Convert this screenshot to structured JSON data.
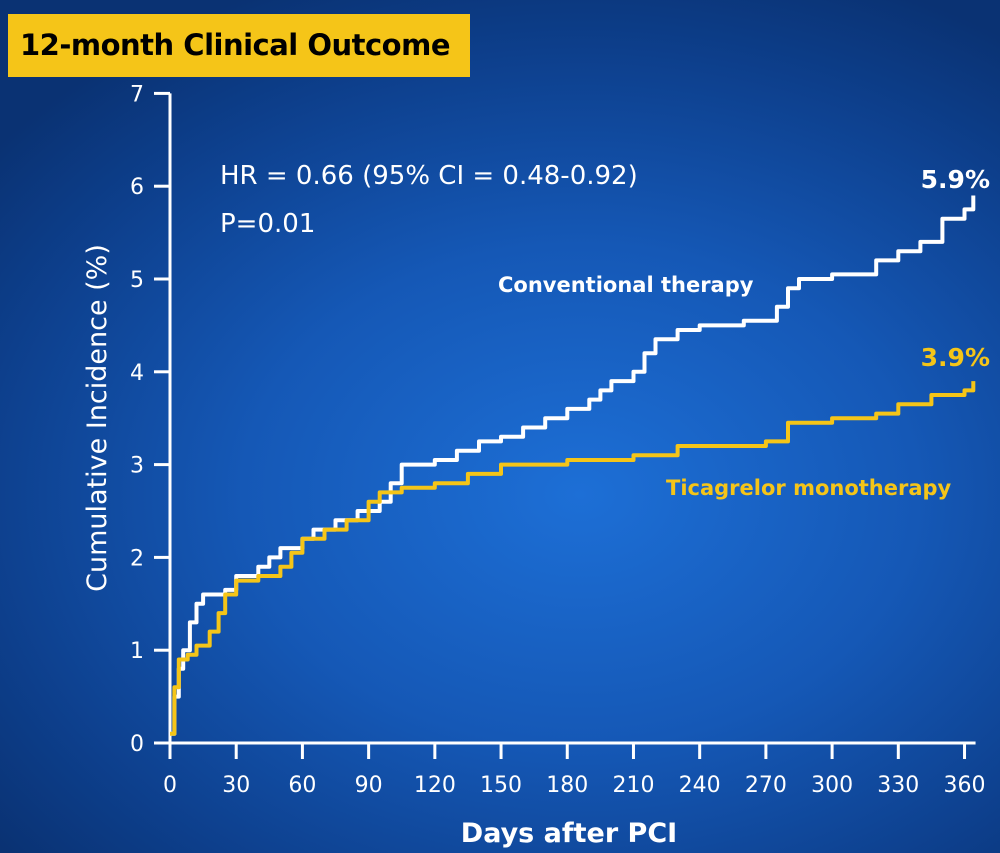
{
  "title": "12-month Clinical Outcome",
  "colors": {
    "background": "#1558b6",
    "title_box": "#f5c518",
    "axis": "#ffffff",
    "conventional": "#ffffff",
    "ticagrelor": "#f5c518"
  },
  "annotations": {
    "hr": "HR = 0.66 (95% CI = 0.48-0.92)",
    "p_value": "P=0.01",
    "conventional_end": "5.9%",
    "ticagrelor_end": "3.9%"
  },
  "chart_data": {
    "type": "line",
    "title": "12-month Clinical Outcome",
    "xlabel": "Days after PCI",
    "ylabel": "Cumulative Incidence (%)",
    "xlim": [
      0,
      365
    ],
    "ylim": [
      0,
      7
    ],
    "x_ticks": [
      0,
      30,
      60,
      90,
      120,
      150,
      180,
      210,
      240,
      270,
      300,
      330,
      360
    ],
    "y_ticks": [
      0,
      1,
      2,
      3,
      4,
      5,
      6,
      7
    ],
    "grid": false,
    "series": [
      {
        "name": "Conventional therapy",
        "color": "#ffffff",
        "end_label": "5.9%",
        "points": [
          [
            0,
            0.1
          ],
          [
            2,
            0.5
          ],
          [
            4,
            0.8
          ],
          [
            6,
            1.0
          ],
          [
            9,
            1.3
          ],
          [
            12,
            1.5
          ],
          [
            15,
            1.6
          ],
          [
            25,
            1.65
          ],
          [
            30,
            1.8
          ],
          [
            40,
            1.9
          ],
          [
            45,
            2.0
          ],
          [
            50,
            2.1
          ],
          [
            60,
            2.2
          ],
          [
            65,
            2.3
          ],
          [
            75,
            2.4
          ],
          [
            85,
            2.5
          ],
          [
            95,
            2.6
          ],
          [
            100,
            2.8
          ],
          [
            105,
            3.0
          ],
          [
            120,
            3.05
          ],
          [
            130,
            3.15
          ],
          [
            140,
            3.25
          ],
          [
            150,
            3.3
          ],
          [
            160,
            3.4
          ],
          [
            170,
            3.5
          ],
          [
            180,
            3.6
          ],
          [
            190,
            3.7
          ],
          [
            195,
            3.8
          ],
          [
            200,
            3.9
          ],
          [
            210,
            4.0
          ],
          [
            215,
            4.2
          ],
          [
            220,
            4.35
          ],
          [
            230,
            4.45
          ],
          [
            240,
            4.5
          ],
          [
            260,
            4.55
          ],
          [
            275,
            4.7
          ],
          [
            280,
            4.9
          ],
          [
            285,
            5.0
          ],
          [
            300,
            5.05
          ],
          [
            320,
            5.2
          ],
          [
            330,
            5.3
          ],
          [
            340,
            5.4
          ],
          [
            350,
            5.65
          ],
          [
            360,
            5.75
          ],
          [
            364,
            5.9
          ]
        ]
      },
      {
        "name": "Ticagrelor monotherapy",
        "color": "#f5c518",
        "end_label": "3.9%",
        "points": [
          [
            0,
            0.1
          ],
          [
            2,
            0.6
          ],
          [
            4,
            0.9
          ],
          [
            8,
            0.95
          ],
          [
            12,
            1.05
          ],
          [
            18,
            1.2
          ],
          [
            22,
            1.4
          ],
          [
            25,
            1.6
          ],
          [
            30,
            1.75
          ],
          [
            40,
            1.8
          ],
          [
            50,
            1.9
          ],
          [
            55,
            2.05
          ],
          [
            60,
            2.2
          ],
          [
            70,
            2.3
          ],
          [
            80,
            2.4
          ],
          [
            90,
            2.6
          ],
          [
            95,
            2.7
          ],
          [
            105,
            2.75
          ],
          [
            120,
            2.8
          ],
          [
            135,
            2.9
          ],
          [
            150,
            3.0
          ],
          [
            180,
            3.05
          ],
          [
            210,
            3.1
          ],
          [
            230,
            3.2
          ],
          [
            270,
            3.25
          ],
          [
            280,
            3.45
          ],
          [
            300,
            3.5
          ],
          [
            320,
            3.55
          ],
          [
            330,
            3.65
          ],
          [
            345,
            3.75
          ],
          [
            360,
            3.8
          ],
          [
            364,
            3.9
          ]
        ]
      }
    ]
  }
}
